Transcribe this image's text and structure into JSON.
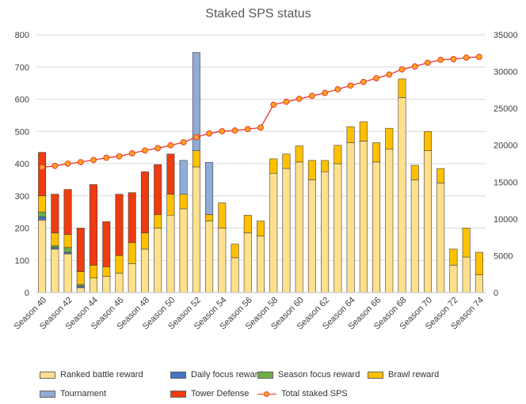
{
  "chart_data": {
    "type": "bar",
    "title": "Staked SPS status",
    "y_left": {
      "min": 0,
      "max": 800,
      "ticks": [
        0,
        100,
        200,
        300,
        400,
        500,
        600,
        700,
        800
      ]
    },
    "y_right": {
      "min": 0,
      "max": 35000,
      "ticks": [
        0,
        5000,
        10000,
        15000,
        20000,
        25000,
        30000,
        35000
      ]
    },
    "categories": [
      "Season 40",
      "Season 41",
      "Season 42",
      "Season 43",
      "Season 44",
      "Season 45",
      "Season 46",
      "Season 47",
      "Season 48",
      "Season 49",
      "Season 50",
      "Season 51",
      "Season 52",
      "Season 53",
      "Season 54",
      "Season 55",
      "Season 56",
      "Season 57",
      "Season 58",
      "Season 59",
      "Season 60",
      "Season 61",
      "Season 62",
      "Season 63",
      "Season 64",
      "Season 65",
      "Season 66",
      "Season 67",
      "Season 68",
      "Season 69",
      "Season 70",
      "Season 71",
      "Season 72",
      "Season 73",
      "Season 74"
    ],
    "tick_labels": [
      "Season 40",
      "Season 42",
      "Season 44",
      "Season 46",
      "Season 48",
      "Season 50",
      "Season 52",
      "Season 54",
      "Season 56",
      "Season 58",
      "Season 60",
      "Season 62",
      "Season 64",
      "Season 66",
      "Season 68",
      "Season 70",
      "Season 72",
      "Season 74"
    ],
    "series": [
      {
        "name": "Ranked battle reward",
        "color": "#ffe08c",
        "values": [
          225,
          135,
          120,
          15,
          45,
          50,
          60,
          90,
          135,
          200,
          240,
          260,
          390,
          222,
          200,
          108,
          185,
          175,
          370,
          385,
          405,
          350,
          375,
          400,
          465,
          470,
          405,
          445,
          605,
          350,
          440,
          340,
          85,
          110,
          55
        ]
      },
      {
        "name": "Daily focus reward",
        "color": "#4472c4",
        "values": [
          10,
          5,
          5,
          5,
          0,
          0,
          0,
          0,
          0,
          0,
          0,
          0,
          0,
          0,
          0,
          0,
          0,
          0,
          0,
          0,
          0,
          0,
          0,
          0,
          0,
          0,
          0,
          0,
          0,
          0,
          0,
          0,
          0,
          0,
          0
        ]
      },
      {
        "name": "Season focus reward",
        "color": "#70ad47",
        "values": [
          15,
          5,
          15,
          5,
          0,
          0,
          0,
          0,
          0,
          0,
          0,
          0,
          0,
          0,
          0,
          0,
          0,
          0,
          0,
          0,
          0,
          0,
          0,
          0,
          0,
          0,
          0,
          0,
          0,
          0,
          0,
          0,
          0,
          0,
          0
        ]
      },
      {
        "name": "Brawl reward",
        "color": "#ffc000",
        "values": [
          50,
          40,
          40,
          40,
          40,
          30,
          55,
          65,
          50,
          42,
          65,
          45,
          50,
          20,
          78,
          42,
          55,
          47,
          45,
          45,
          50,
          60,
          35,
          57,
          50,
          60,
          60,
          65,
          58,
          45,
          60,
          45,
          50,
          90,
          70
        ]
      },
      {
        "name": "Tournament",
        "color": "#8eacd6",
        "values": [
          0,
          0,
          0,
          0,
          0,
          0,
          0,
          0,
          0,
          0,
          0,
          105,
          305,
          162,
          0,
          0,
          0,
          0,
          0,
          0,
          0,
          0,
          0,
          0,
          0,
          0,
          0,
          0,
          0,
          0,
          0,
          0,
          0,
          0,
          0
        ]
      },
      {
        "name": "Tower Defense",
        "color": "#ee3b10",
        "values": [
          135,
          120,
          140,
          135,
          250,
          140,
          190,
          155,
          190,
          155,
          125,
          0,
          0,
          0,
          0,
          0,
          0,
          0,
          0,
          0,
          0,
          0,
          0,
          0,
          0,
          0,
          0,
          0,
          0,
          0,
          0,
          0,
          0,
          0,
          0
        ]
      }
    ],
    "line": {
      "name": "Total staked SPS",
      "axis": "right",
      "color": "#e8372b",
      "marker_color": "#ffa51f",
      "values": [
        17000,
        17200,
        17500,
        17700,
        18000,
        18300,
        18500,
        18900,
        19300,
        19600,
        20000,
        20400,
        21100,
        21600,
        21900,
        22000,
        22200,
        22400,
        25500,
        25900,
        26300,
        26700,
        27100,
        27600,
        28100,
        28600,
        29100,
        29600,
        30300,
        30700,
        31200,
        31600,
        31700,
        31900,
        32000
      ]
    }
  },
  "legend": {
    "ranked": "Ranked battle reward",
    "daily": "Daily focus reward",
    "season": "Season focus reward",
    "brawl": "Brawl reward",
    "tournament": "Tournament",
    "tower": "Tower Defense",
    "total": "Total staked SPS"
  }
}
